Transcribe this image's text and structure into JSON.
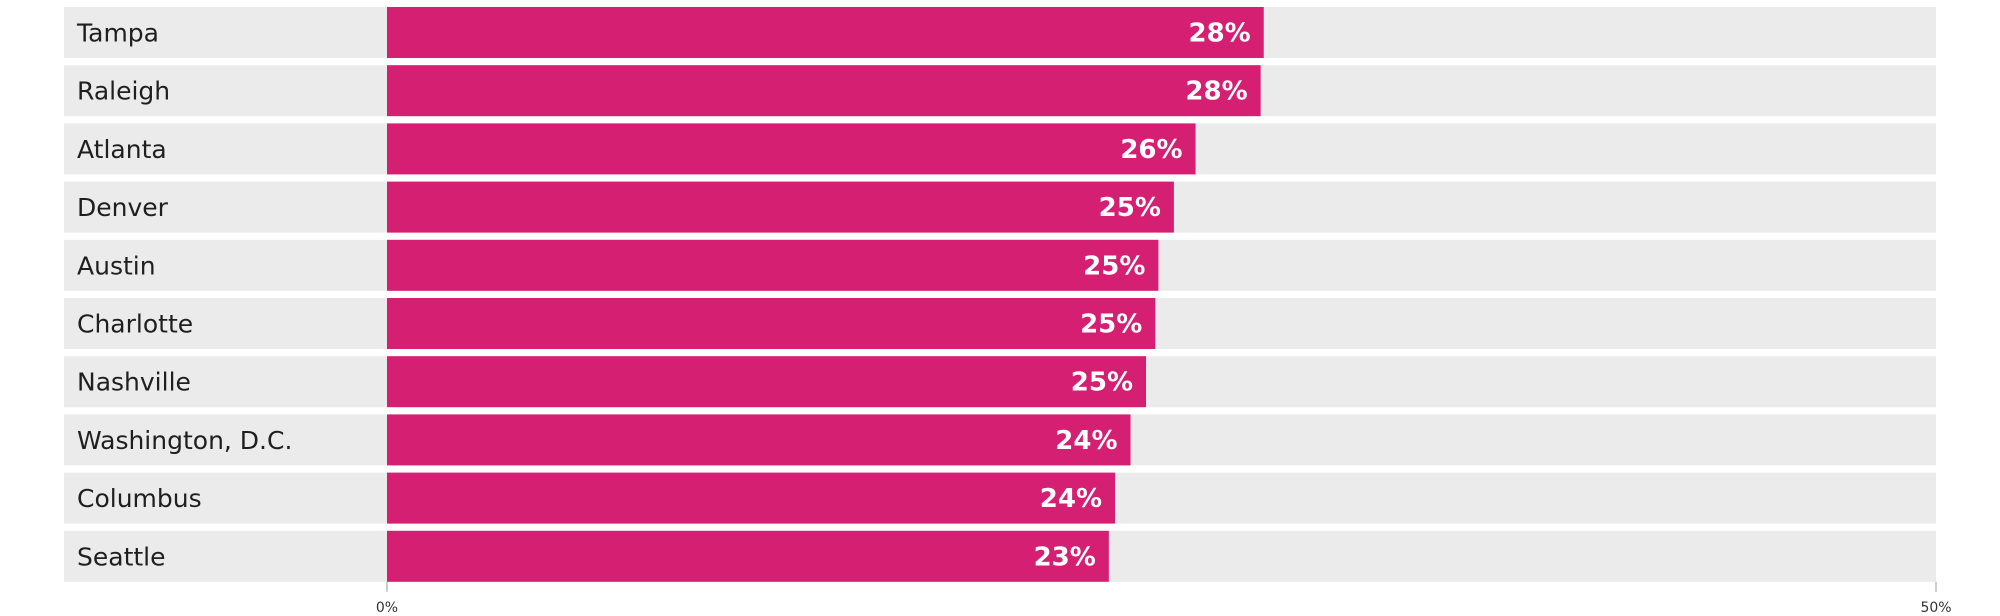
{
  "chart_data": {
    "type": "bar",
    "orientation": "horizontal",
    "title": "",
    "xlabel": "",
    "ylabel": "",
    "categories": [
      "Tampa",
      "Raleigh",
      "Atlanta",
      "Denver",
      "Austin",
      "Charlotte",
      "Nashville",
      "Washington, D.C.",
      "Columbus",
      "Seattle"
    ],
    "values": [
      28.3,
      28.2,
      26.1,
      25.4,
      24.9,
      24.8,
      24.5,
      24.0,
      23.5,
      23.3
    ],
    "value_labels": [
      "28%",
      "28%",
      "26%",
      "25%",
      "25%",
      "25%",
      "25%",
      "24%",
      "24%",
      "23%"
    ],
    "xlim": [
      0,
      50
    ],
    "x_ticks": [
      0,
      50
    ],
    "x_tick_labels": [
      "0%",
      "50%"
    ],
    "grid": false,
    "legend": "none",
    "colors": {
      "bar": "#d41f72",
      "track": "#ebebeb",
      "label_text": "#1f1f1f",
      "value_text": "#ffffff",
      "axis": "#999999"
    }
  }
}
